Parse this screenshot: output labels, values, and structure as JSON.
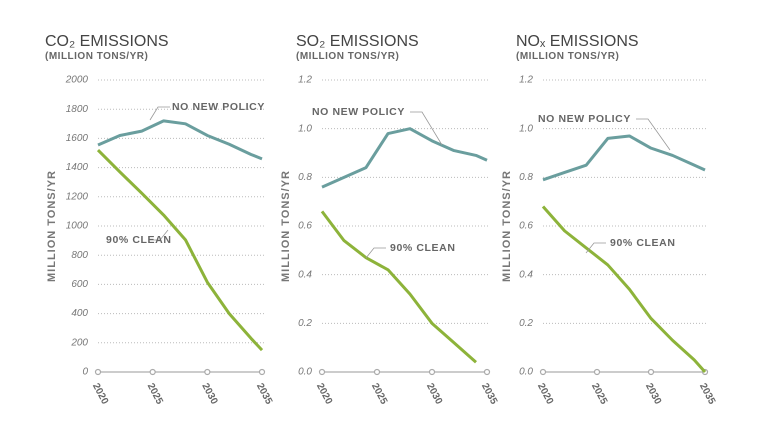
{
  "chart_data": [
    {
      "type": "line",
      "title": "CO₂ EMISSIONS",
      "subtitle": "(MILLION TONS/YR)",
      "ylabel": "MILLION TONS/YR",
      "x": [
        2020,
        2022,
        2024,
        2026,
        2028,
        2030,
        2032,
        2034,
        2035
      ],
      "xlim": [
        2020,
        2035
      ],
      "xticks": [
        2020,
        2025,
        2030,
        2035
      ],
      "ylim": [
        0,
        2000
      ],
      "yticks": [
        0,
        200,
        400,
        600,
        800,
        1000,
        1200,
        1400,
        1600,
        1800,
        2000
      ],
      "grid": true,
      "series": [
        {
          "name": "NO NEW POLICY",
          "color": "#6a9e9e",
          "values": [
            1555,
            1620,
            1650,
            1720,
            1700,
            1620,
            1560,
            1490,
            1460
          ]
        },
        {
          "name": "90% CLEAN",
          "color": "#8db33a",
          "values": [
            1520,
            1370,
            1225,
            1075,
            905,
            615,
            400,
            230,
            150
          ]
        }
      ]
    },
    {
      "type": "line",
      "title": "SO₂ EMISSIONS",
      "subtitle": "(MILLION TONS/YR)",
      "ylabel": "MILLION TONS/YR",
      "x": [
        2020,
        2022,
        2024,
        2026,
        2028,
        2030,
        2032,
        2034,
        2035
      ],
      "xlim": [
        2020,
        2035
      ],
      "xticks": [
        2020,
        2025,
        2030,
        2035
      ],
      "ylim": [
        0,
        1.2
      ],
      "yticks": [
        {
          "value": 0,
          "label": "0.0"
        },
        0.2,
        0.4,
        0.6,
        0.8,
        {
          "value": 1,
          "label": "1.0"
        },
        1.2
      ],
      "grid": true,
      "series": [
        {
          "name": "NO NEW POLICY",
          "color": "#6a9e9e",
          "values": [
            0.76,
            0.8,
            0.84,
            0.98,
            1.0,
            0.95,
            0.91,
            0.89,
            0.87
          ]
        },
        {
          "name": "90% CLEAN",
          "color": "#8db33a",
          "values": [
            0.66,
            0.54,
            0.47,
            0.42,
            0.32,
            0.2,
            0.12,
            0.04,
            null
          ]
        }
      ]
    },
    {
      "type": "line",
      "title": "NOₓ EMISSIONS",
      "subtitle": "(MILLION TONS/YR)",
      "ylabel": "MILLION TONS/YR",
      "x": [
        2020,
        2022,
        2024,
        2026,
        2028,
        2030,
        2032,
        2034,
        2035
      ],
      "xlim": [
        2020,
        2035
      ],
      "xticks": [
        2020,
        2025,
        2030,
        2035
      ],
      "ylim": [
        0,
        1.2
      ],
      "yticks": [
        {
          "value": 0,
          "label": "0.0"
        },
        0.2,
        0.4,
        0.6,
        0.8,
        {
          "value": 1,
          "label": "1.0"
        },
        1.2
      ],
      "grid": true,
      "series": [
        {
          "name": "NO NEW POLICY",
          "color": "#6a9e9e",
          "values": [
            0.79,
            0.82,
            0.85,
            0.96,
            0.97,
            0.92,
            0.89,
            0.85,
            0.83
          ]
        },
        {
          "name": "90% CLEAN",
          "color": "#8db33a",
          "values": [
            0.68,
            0.58,
            0.51,
            0.44,
            0.34,
            0.22,
            0.13,
            0.05,
            0
          ]
        }
      ]
    }
  ]
}
